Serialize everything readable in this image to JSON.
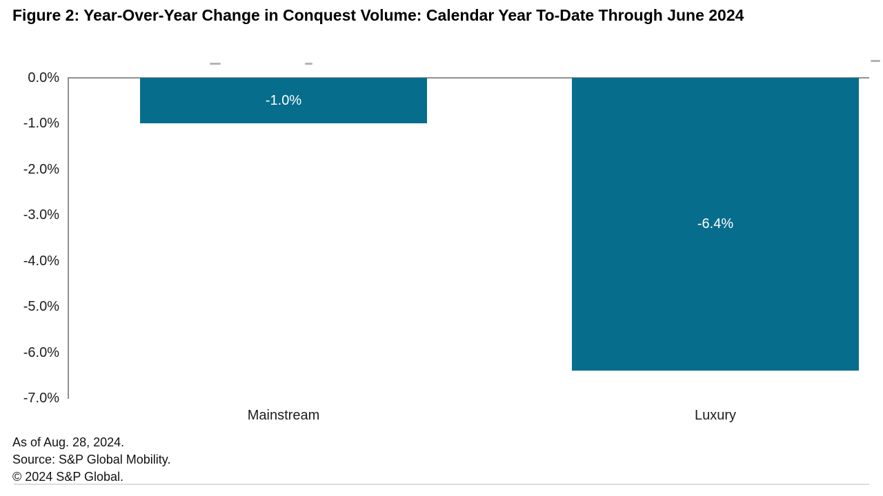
{
  "title": "Figure 2: Year-Over-Year Change in Conquest Volume: Calendar Year To-Date Through June 2024",
  "footer": {
    "as_of": "As of Aug. 28, 2024.",
    "source": "Source: S&P Global Mobility.",
    "copyright": "© 2024 S&P Global."
  },
  "colors": {
    "bar": "#076D8C",
    "axis": "#8F8F8F",
    "separator": "#DCDCDC",
    "value_label": "#FFFFFF",
    "text": "#111111"
  },
  "chart_data": {
    "type": "bar",
    "orientation": "vertical",
    "title": "Figure 2: Year-Over-Year Change in Conquest Volume: Calendar Year To-Date Through June 2024",
    "categories": [
      "Mainstream",
      "Luxury"
    ],
    "values": [
      -1.0,
      -6.4
    ],
    "value_labels": [
      "-1.0%",
      "-6.4%"
    ],
    "xlabel": "",
    "ylabel": "",
    "ylim": [
      -7.0,
      0.0
    ],
    "ytick_values": [
      0,
      -1,
      -2,
      -3,
      -4,
      -5,
      -6,
      -7
    ],
    "ytick_labels": [
      "0.0%",
      "-1.0%",
      "-2.0%",
      "-3.0%",
      "-4.0%",
      "-5.0%",
      "-6.0%",
      "-7.0%"
    ],
    "grid": false,
    "legend": false,
    "bar_color": "#076D8C",
    "notes": [
      "As of Aug. 28, 2024.",
      "Source: S&P Global Mobility.",
      "© 2024 S&P Global."
    ]
  }
}
